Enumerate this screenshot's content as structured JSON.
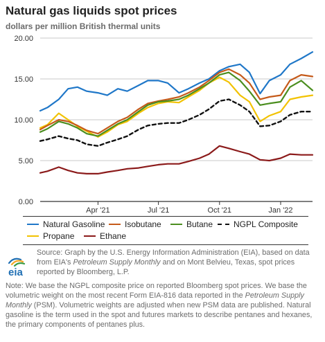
{
  "title": "Natural gas liquids spot prices",
  "subtitle": "dollars per million British thermal units",
  "source": {
    "p1": "Source: Graph by the U.S. Energy Information Administration (EIA), based on data from EIA's ",
    "i1": "Petroleum Supply Monthly",
    "p2": " and on Mont Belvieu, Texas, spot prices reported by Bloomberg, L.P."
  },
  "note": {
    "p1": "Note: We base the NGPL composite price on reported Bloomberg spot prices. We base the volumetric weight on the most recent Form EIA-816 data reported in the ",
    "i1": "Petroleum Supply Monthly",
    "p2": " (PSM). Volumetric weights are adjusted when new PSM data are published. Natural gasoline is the term used in the spot and futures markets to describe pentanes and hexanes, the primary components of pentanes plus."
  },
  "logo": {
    "text": "eia",
    "colors": [
      "#1f6fb4",
      "#f5a623",
      "#3a9b47"
    ]
  },
  "chart_data": {
    "type": "line",
    "title": "Natural gas liquids spot prices",
    "ylabel": "dollars per million British thermal units",
    "xlabel": "",
    "ylim": [
      0,
      20
    ],
    "yticks": [
      "0.00",
      "5.00",
      "10.00",
      "15.00",
      "20.00"
    ],
    "xlim": [
      "2021-01-04",
      "2022-02-18"
    ],
    "xticks": [
      {
        "label": "Apr '21",
        "date": "2021-04-01"
      },
      {
        "label": "Jul '21",
        "date": "2021-07-01"
      },
      {
        "label": "Oct '21",
        "date": "2021-10-01"
      },
      {
        "label": "Jan '22",
        "date": "2022-01-01"
      }
    ],
    "grid": true,
    "legend": "bottom",
    "series": [
      {
        "name": "Natural Gasoline",
        "color": "#1f77c8",
        "style": "solid",
        "dates": [
          "2021-01-04",
          "2021-01-15",
          "2021-02-01",
          "2021-02-15",
          "2021-03-01",
          "2021-03-15",
          "2021-04-01",
          "2021-04-15",
          "2021-05-01",
          "2021-05-15",
          "2021-06-01",
          "2021-06-15",
          "2021-07-01",
          "2021-07-15",
          "2021-08-01",
          "2021-08-15",
          "2021-09-01",
          "2021-09-15",
          "2021-10-01",
          "2021-10-15",
          "2021-11-01",
          "2021-11-15",
          "2021-12-01",
          "2021-12-15",
          "2022-01-01",
          "2022-01-15",
          "2022-02-01",
          "2022-02-18"
        ],
        "values": [
          11.1,
          11.5,
          12.5,
          13.8,
          14.0,
          13.5,
          13.3,
          13.0,
          13.8,
          13.5,
          14.2,
          14.8,
          14.8,
          14.5,
          13.3,
          13.8,
          14.5,
          15.0,
          16.0,
          16.5,
          16.8,
          15.8,
          13.2,
          14.8,
          15.5,
          16.8,
          17.5,
          18.3
        ]
      },
      {
        "name": "Isobutane",
        "color": "#c55a1a",
        "style": "solid",
        "dates": [
          "2021-01-04",
          "2021-01-15",
          "2021-02-01",
          "2021-02-15",
          "2021-03-01",
          "2021-03-15",
          "2021-04-01",
          "2021-04-15",
          "2021-05-01",
          "2021-05-15",
          "2021-06-01",
          "2021-06-15",
          "2021-07-01",
          "2021-07-15",
          "2021-08-01",
          "2021-08-15",
          "2021-09-01",
          "2021-09-15",
          "2021-10-01",
          "2021-10-15",
          "2021-11-01",
          "2021-11-15",
          "2021-12-01",
          "2021-12-15",
          "2022-01-01",
          "2022-01-15",
          "2022-02-01",
          "2022-02-18"
        ],
        "values": [
          8.8,
          9.3,
          10.0,
          9.8,
          9.3,
          8.7,
          8.3,
          9.0,
          9.8,
          10.3,
          11.3,
          12.0,
          12.3,
          12.5,
          12.8,
          13.3,
          14.0,
          14.8,
          15.8,
          16.2,
          15.5,
          14.5,
          12.5,
          12.8,
          13.0,
          14.8,
          15.5,
          15.3
        ]
      },
      {
        "name": "Butane",
        "color": "#4b8e1f",
        "style": "solid",
        "dates": [
          "2021-01-04",
          "2021-01-15",
          "2021-02-01",
          "2021-02-15",
          "2021-03-01",
          "2021-03-15",
          "2021-04-01",
          "2021-04-15",
          "2021-05-01",
          "2021-05-15",
          "2021-06-01",
          "2021-06-15",
          "2021-07-01",
          "2021-07-15",
          "2021-08-01",
          "2021-08-15",
          "2021-09-01",
          "2021-09-15",
          "2021-10-01",
          "2021-10-15",
          "2021-11-01",
          "2021-11-15",
          "2021-12-01",
          "2021-12-15",
          "2022-01-01",
          "2022-01-15",
          "2022-02-01",
          "2022-02-18"
        ],
        "values": [
          8.5,
          8.9,
          9.8,
          9.5,
          9.0,
          8.3,
          8.0,
          8.7,
          9.5,
          10.0,
          11.0,
          11.8,
          12.2,
          12.3,
          12.5,
          13.0,
          13.8,
          14.5,
          15.5,
          15.8,
          14.8,
          13.5,
          11.8,
          12.0,
          12.2,
          14.0,
          14.8,
          13.6
        ]
      },
      {
        "name": "NGPL Composite",
        "color": "#111111",
        "style": "dashed",
        "dates": [
          "2021-01-04",
          "2021-01-15",
          "2021-02-01",
          "2021-02-15",
          "2021-03-01",
          "2021-03-15",
          "2021-04-01",
          "2021-04-15",
          "2021-05-01",
          "2021-05-15",
          "2021-06-01",
          "2021-06-15",
          "2021-07-01",
          "2021-07-15",
          "2021-08-01",
          "2021-08-15",
          "2021-09-01",
          "2021-09-15",
          "2021-10-01",
          "2021-10-15",
          "2021-11-01",
          "2021-11-15",
          "2021-12-01",
          "2021-12-15",
          "2022-01-01",
          "2022-01-15",
          "2022-02-01",
          "2022-02-18"
        ],
        "values": [
          7.4,
          7.6,
          8.0,
          7.7,
          7.5,
          7.0,
          6.8,
          7.2,
          7.6,
          8.0,
          8.8,
          9.3,
          9.5,
          9.6,
          9.6,
          10.0,
          10.6,
          11.3,
          12.3,
          12.5,
          11.8,
          11.0,
          9.2,
          9.3,
          9.8,
          10.6,
          11.0,
          11.0
        ]
      },
      {
        "name": "Propane",
        "color": "#f2c200",
        "style": "solid",
        "dates": [
          "2021-01-04",
          "2021-01-15",
          "2021-02-01",
          "2021-02-15",
          "2021-03-01",
          "2021-03-15",
          "2021-04-01",
          "2021-04-15",
          "2021-05-01",
          "2021-05-15",
          "2021-06-01",
          "2021-06-15",
          "2021-07-01",
          "2021-07-15",
          "2021-08-01",
          "2021-08-15",
          "2021-09-01",
          "2021-09-15",
          "2021-10-01",
          "2021-10-15",
          "2021-11-01",
          "2021-11-15",
          "2021-12-01",
          "2021-12-15",
          "2022-01-01",
          "2022-01-15",
          "2022-02-01",
          "2022-02-18"
        ],
        "values": [
          9.0,
          9.4,
          10.8,
          10.0,
          9.2,
          8.6,
          7.9,
          8.5,
          9.4,
          9.8,
          10.8,
          11.5,
          12.0,
          12.2,
          12.1,
          12.8,
          13.6,
          14.5,
          15.2,
          14.6,
          13.0,
          12.2,
          9.8,
          10.5,
          11.0,
          12.5,
          12.8,
          13.0
        ]
      },
      {
        "name": "Ethane",
        "color": "#8b1a1a",
        "style": "solid",
        "dates": [
          "2021-01-04",
          "2021-01-15",
          "2021-02-01",
          "2021-02-15",
          "2021-03-01",
          "2021-03-15",
          "2021-04-01",
          "2021-04-15",
          "2021-05-01",
          "2021-05-15",
          "2021-06-01",
          "2021-06-15",
          "2021-07-01",
          "2021-07-15",
          "2021-08-01",
          "2021-08-15",
          "2021-09-01",
          "2021-09-15",
          "2021-10-01",
          "2021-10-15",
          "2021-11-01",
          "2021-11-15",
          "2021-12-01",
          "2021-12-15",
          "2022-01-01",
          "2022-01-15",
          "2022-02-01",
          "2022-02-18"
        ],
        "values": [
          3.5,
          3.7,
          4.2,
          3.8,
          3.5,
          3.4,
          3.4,
          3.6,
          3.8,
          4.0,
          4.1,
          4.3,
          4.5,
          4.6,
          4.6,
          4.9,
          5.3,
          5.8,
          6.8,
          6.5,
          6.1,
          5.8,
          5.1,
          5.0,
          5.3,
          5.8,
          5.7,
          5.7
        ]
      }
    ]
  }
}
